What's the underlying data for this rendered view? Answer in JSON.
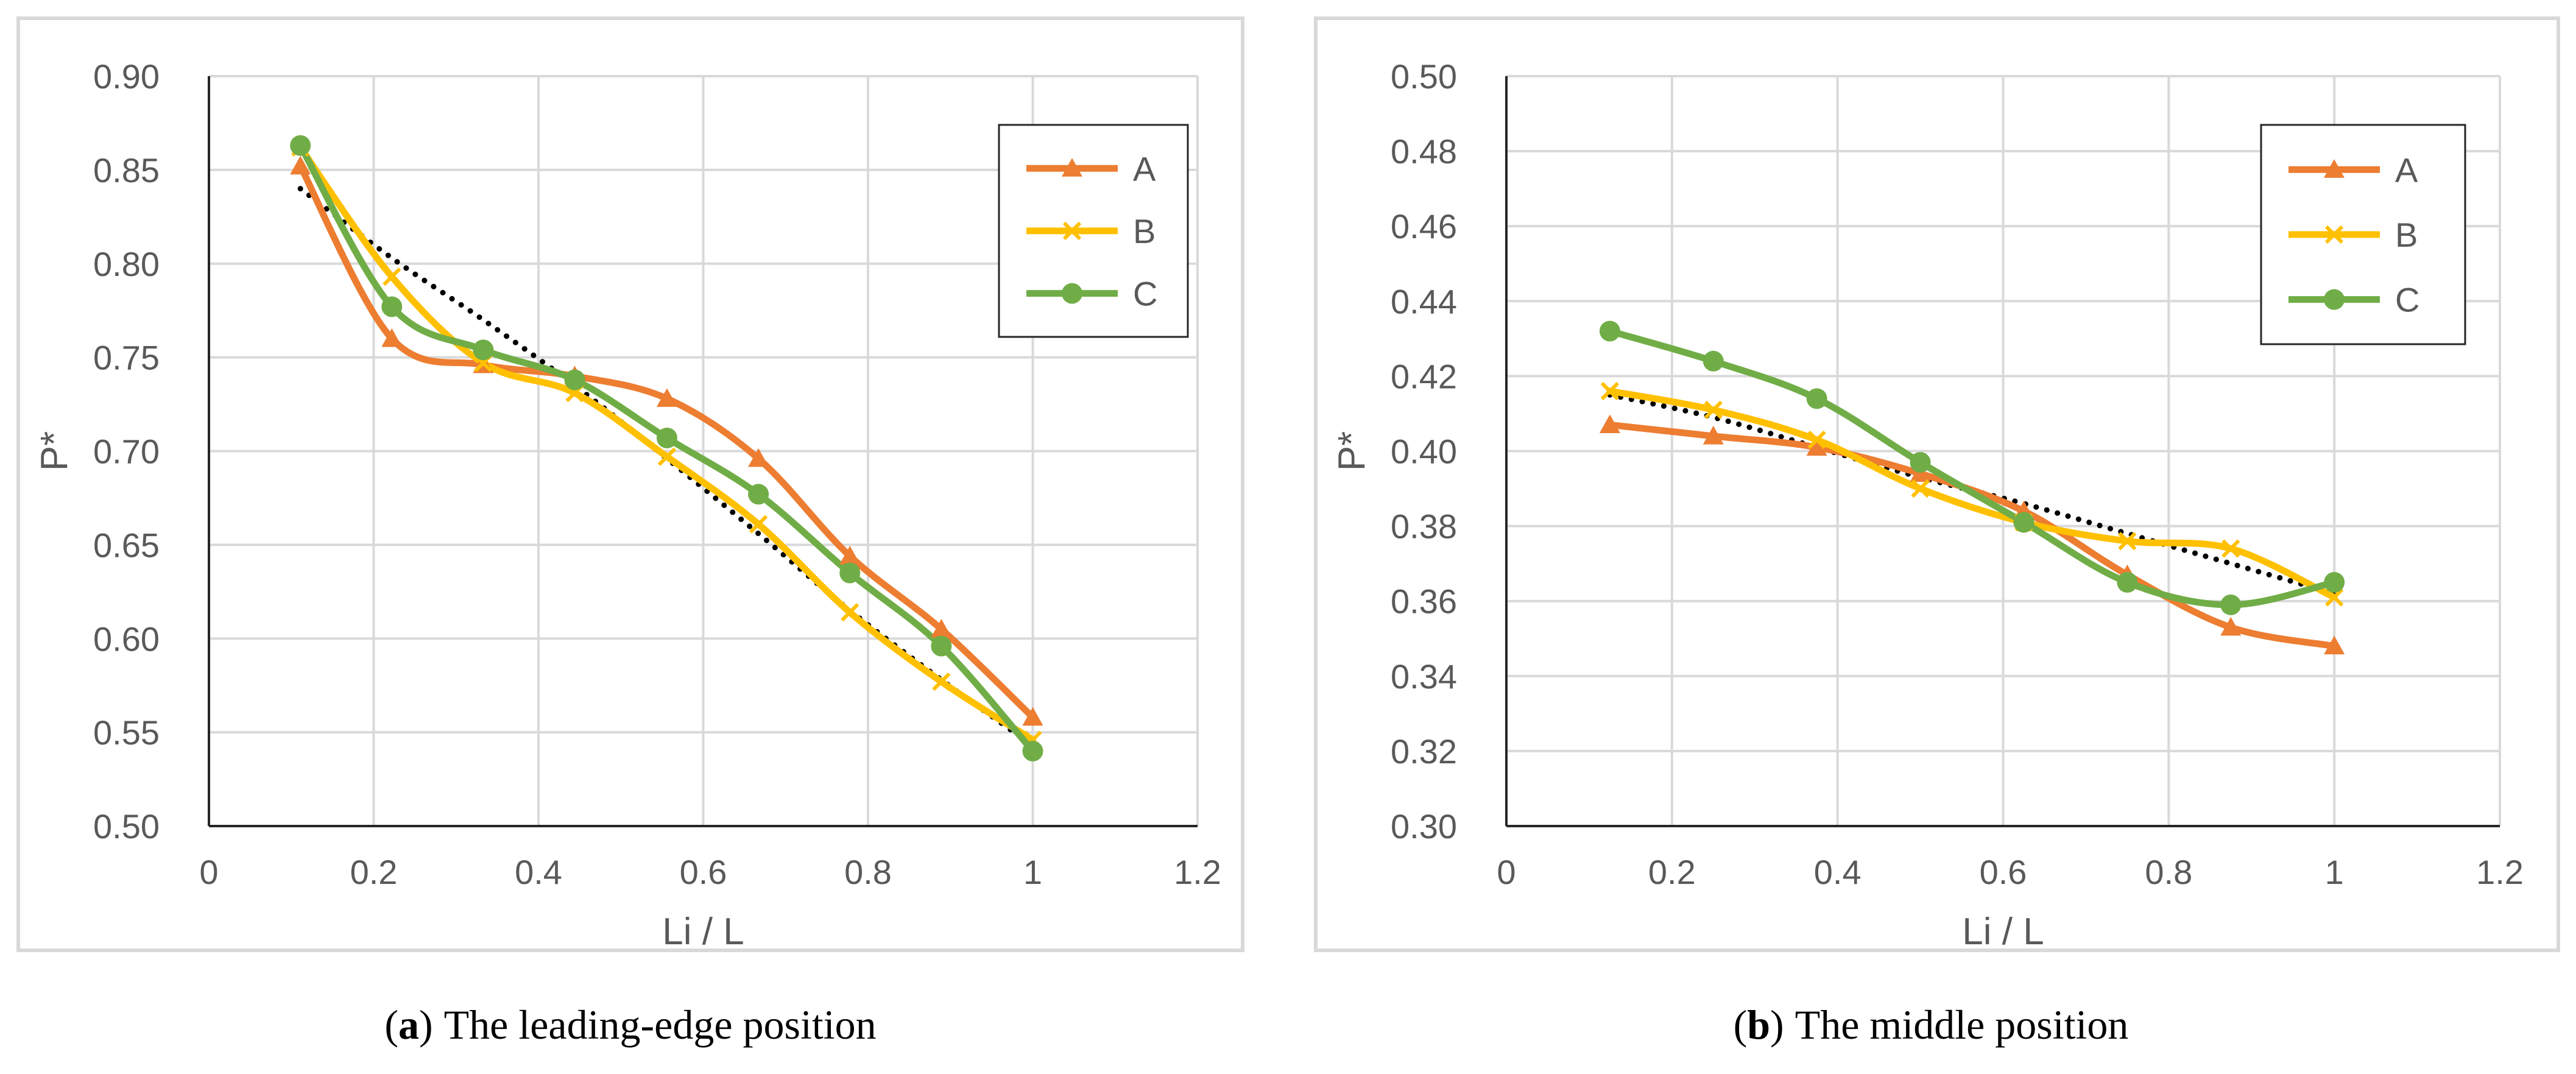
{
  "colors": {
    "A": "#ED7D31",
    "B": "#FFC000",
    "C": "#70AD47",
    "trend": "#000000",
    "grid": "#D9D9D9",
    "frame": "#D9D9D9",
    "axis": "#595959"
  },
  "chart_data": [
    {
      "type": "line",
      "caption_letter": "a",
      "caption_text": "The leading-edge position",
      "open_paren": "(",
      "close_paren": ")",
      "xlabel": "Li / L",
      "ylabel": "P*",
      "xlim": [
        0,
        1.2
      ],
      "ylim": [
        0.5,
        0.9
      ],
      "xticks": [
        "0",
        "0.2",
        "0.4",
        "0.6",
        "0.8",
        "1",
        "1.2"
      ],
      "yticks": [
        "0.50",
        "0.55",
        "0.60",
        "0.65",
        "0.70",
        "0.75",
        "0.80",
        "0.85",
        "0.90"
      ],
      "legend_position": "top-right",
      "series": [
        {
          "name": "A",
          "marker": "triangle",
          "x": [
            0.111,
            0.222,
            0.333,
            0.444,
            0.556,
            0.667,
            0.778,
            0.889,
            1.0
          ],
          "values": [
            0.852,
            0.76,
            0.746,
            0.74,
            0.728,
            0.696,
            0.644,
            0.605,
            0.558
          ]
        },
        {
          "name": "B",
          "marker": "x",
          "x": [
            0.111,
            0.222,
            0.333,
            0.444,
            0.556,
            0.667,
            0.778,
            0.889,
            1.0
          ],
          "values": [
            0.862,
            0.793,
            0.747,
            0.731,
            0.697,
            0.661,
            0.614,
            0.577,
            0.546
          ]
        },
        {
          "name": "C",
          "marker": "circle",
          "x": [
            0.111,
            0.222,
            0.333,
            0.444,
            0.556,
            0.667,
            0.778,
            0.889,
            1.0
          ],
          "values": [
            0.863,
            0.777,
            0.754,
            0.738,
            0.707,
            0.677,
            0.635,
            0.596,
            0.54
          ]
        }
      ],
      "trendline": {
        "style": "dotted",
        "x": [
          0.111,
          0.222,
          0.333,
          0.444,
          0.556,
          0.667,
          0.778,
          0.889,
          1.0
        ],
        "values": [
          0.84,
          0.803,
          0.77,
          0.735,
          0.696,
          0.656,
          0.615,
          0.578,
          0.543
        ]
      }
    },
    {
      "type": "line",
      "caption_letter": "b",
      "caption_text": "The middle position",
      "open_paren": "(",
      "close_paren": ")",
      "xlabel": "Li / L",
      "ylabel": "P*",
      "xlim": [
        0,
        1.2
      ],
      "ylim": [
        0.3,
        0.5
      ],
      "xticks": [
        "0",
        "0.2",
        "0.4",
        "0.6",
        "0.8",
        "1",
        "1.2"
      ],
      "yticks": [
        "0.30",
        "0.32",
        "0.34",
        "0.36",
        "0.38",
        "0.40",
        "0.42",
        "0.44",
        "0.46",
        "0.48",
        "0.50"
      ],
      "legend_position": "top-right",
      "series": [
        {
          "name": "A",
          "marker": "triangle",
          "x": [
            0.125,
            0.25,
            0.375,
            0.5,
            0.625,
            0.75,
            0.875,
            1.0
          ],
          "values": [
            0.407,
            0.404,
            0.401,
            0.394,
            0.384,
            0.367,
            0.353,
            0.348
          ]
        },
        {
          "name": "B",
          "marker": "x",
          "x": [
            0.125,
            0.25,
            0.375,
            0.5,
            0.625,
            0.75,
            0.875,
            1.0
          ],
          "values": [
            0.416,
            0.411,
            0.403,
            0.39,
            0.381,
            0.376,
            0.374,
            0.361
          ]
        },
        {
          "name": "C",
          "marker": "circle",
          "x": [
            0.125,
            0.25,
            0.375,
            0.5,
            0.625,
            0.75,
            0.875,
            1.0
          ],
          "values": [
            0.432,
            0.424,
            0.414,
            0.397,
            0.381,
            0.365,
            0.359,
            0.365
          ]
        }
      ],
      "trendline": {
        "style": "dotted",
        "x": [
          0.125,
          0.25,
          0.375,
          0.5,
          0.625,
          0.75,
          0.875,
          1.0
        ],
        "values": [
          0.415,
          0.409,
          0.401,
          0.393,
          0.386,
          0.378,
          0.37,
          0.362
        ]
      }
    }
  ]
}
